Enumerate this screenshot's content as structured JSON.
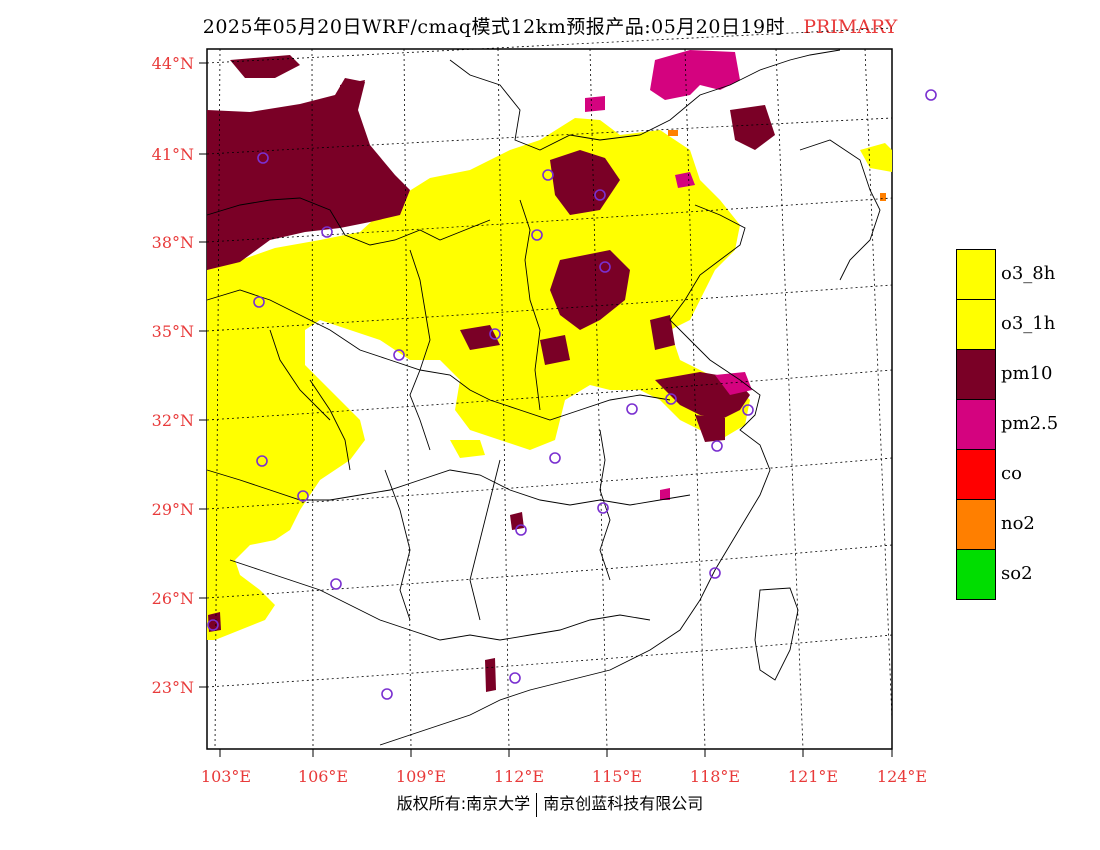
{
  "title": {
    "text": "2025年05月20日WRF/cmaq模式12km预报产品:05月20日19时",
    "tag": "PRIMARY"
  },
  "axes": {
    "lat_labels": [
      "44°N",
      "41°N",
      "38°N",
      "35°N",
      "32°N",
      "29°N",
      "26°N",
      "23°N"
    ],
    "lon_labels": [
      "103°E",
      "106°E",
      "109°E",
      "112°E",
      "115°E",
      "118°E",
      "121°E",
      "124°E"
    ]
  },
  "legend": [
    {
      "label": "o3_8h",
      "color": "#ffff00"
    },
    {
      "label": "o3_1h",
      "color": "#ffff00"
    },
    {
      "label": "pm10",
      "color": "#7a0026"
    },
    {
      "label": "pm2.5",
      "color": "#d4037f"
    },
    {
      "label": "co",
      "color": "#ff0000"
    },
    {
      "label": "no2",
      "color": "#ff7f00"
    },
    {
      "label": "so2",
      "color": "#00dd00"
    }
  ],
  "credit": {
    "left": "版权所有:南京大学",
    "right": "南京创蓝科技有限公司"
  }
}
